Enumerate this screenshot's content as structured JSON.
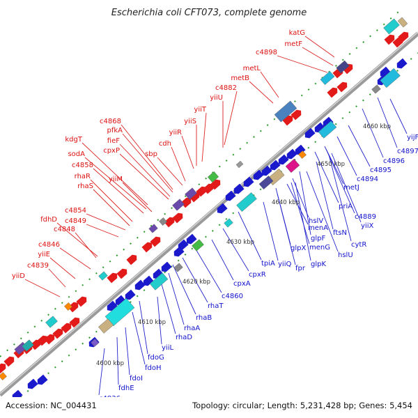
{
  "title": "Escherichia coli CFT073, complete genome",
  "footer": {
    "accession": "Accession: NC_004431",
    "summary": "Topology: circular; Length: 5,231,428 bp; Genes: 5,454"
  },
  "colors": {
    "forward_gene": "#dd1111",
    "reverse_gene": "#1111cc",
    "backbone": "#888888",
    "tick": "#2a9a2a"
  },
  "kbp_labels": [
    "4600 kbp",
    "4610 kbp",
    "4620 kbp",
    "4630 kbp",
    "4640 kbp",
    "4650 kbp",
    "4660 kbp"
  ],
  "forward_labels": [
    "katG",
    "metF",
    "c4898",
    "metL",
    "metB",
    "c4882",
    "yiiU",
    "yiiT",
    "yiiS",
    "yiiR",
    "c4868",
    "pfkA",
    "fieF",
    "cpxP",
    "sbp",
    "cdh",
    "kdgT",
    "sodA",
    "c4858",
    "yiiM",
    "rhaR",
    "rhaS",
    "c4854",
    "c4849",
    "fdhD",
    "c4848",
    "c4846",
    "yiiE",
    "c4839",
    "yiiD"
  ],
  "reverse_labels": [
    "yijF",
    "c4897",
    "c4896",
    "c4895",
    "c4894",
    "metJ",
    "priA",
    "c4889",
    "yiiX",
    "hslV",
    "ftsN",
    "cytR",
    "menA",
    "glpF",
    "menG",
    "hslU",
    "glpX",
    "yiiQ",
    "fpr",
    "glpK",
    "tpiA",
    "cpxR",
    "cpxA",
    "c4860",
    "rhaT",
    "rhaB",
    "rhaA",
    "rhaD",
    "yiiL",
    "fdoG",
    "fdoH",
    "fdoI",
    "fdhE",
    "c4836"
  ]
}
